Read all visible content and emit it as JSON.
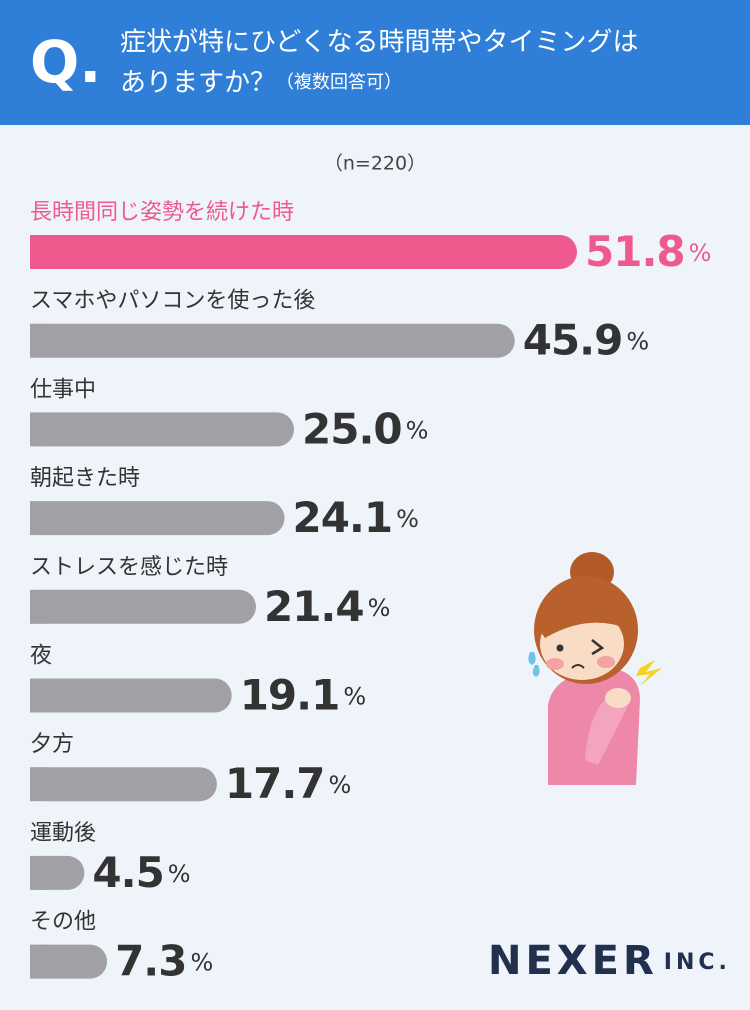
{
  "chart_data": {
    "type": "bar",
    "title_mark": "Q.",
    "title": [
      "症状が特にひどくなる時間帯やタイミングは",
      "ありますか？"
    ],
    "title_note": "（複数回答可）",
    "subtitle": "（n=220）",
    "categories": [
      "長時間同じ姿勢を続けた時",
      "スマホやパソコンを使った後",
      "仕事中",
      "朝起きた時",
      "ストレスを感じた時",
      "夜",
      "夕方",
      "運動後",
      "その他"
    ],
    "values": [
      51.8,
      45.9,
      25.0,
      24.1,
      21.4,
      19.1,
      17.7,
      4.5,
      7.3
    ],
    "value_labels": [
      "51.8",
      "45.9",
      "25.0",
      "24.1",
      "21.4",
      "19.1",
      "17.7",
      "4.5",
      "7.3"
    ],
    "value_suffix": "%",
    "colors": [
      "#ee5a8e",
      "#a0a0a5",
      "#a0a0a5",
      "#a0a0a5",
      "#a0a0a5",
      "#a0a0a5",
      "#a0a0a5",
      "#a0a0a5",
      "#a0a0a5"
    ],
    "label_colors": [
      "#ee5a8e",
      "#333333",
      "#333333",
      "#333333",
      "#333333",
      "#333333",
      "#333333",
      "#333333",
      "#333333"
    ],
    "brand": "NEXER",
    "brand_suffix": "INC."
  }
}
